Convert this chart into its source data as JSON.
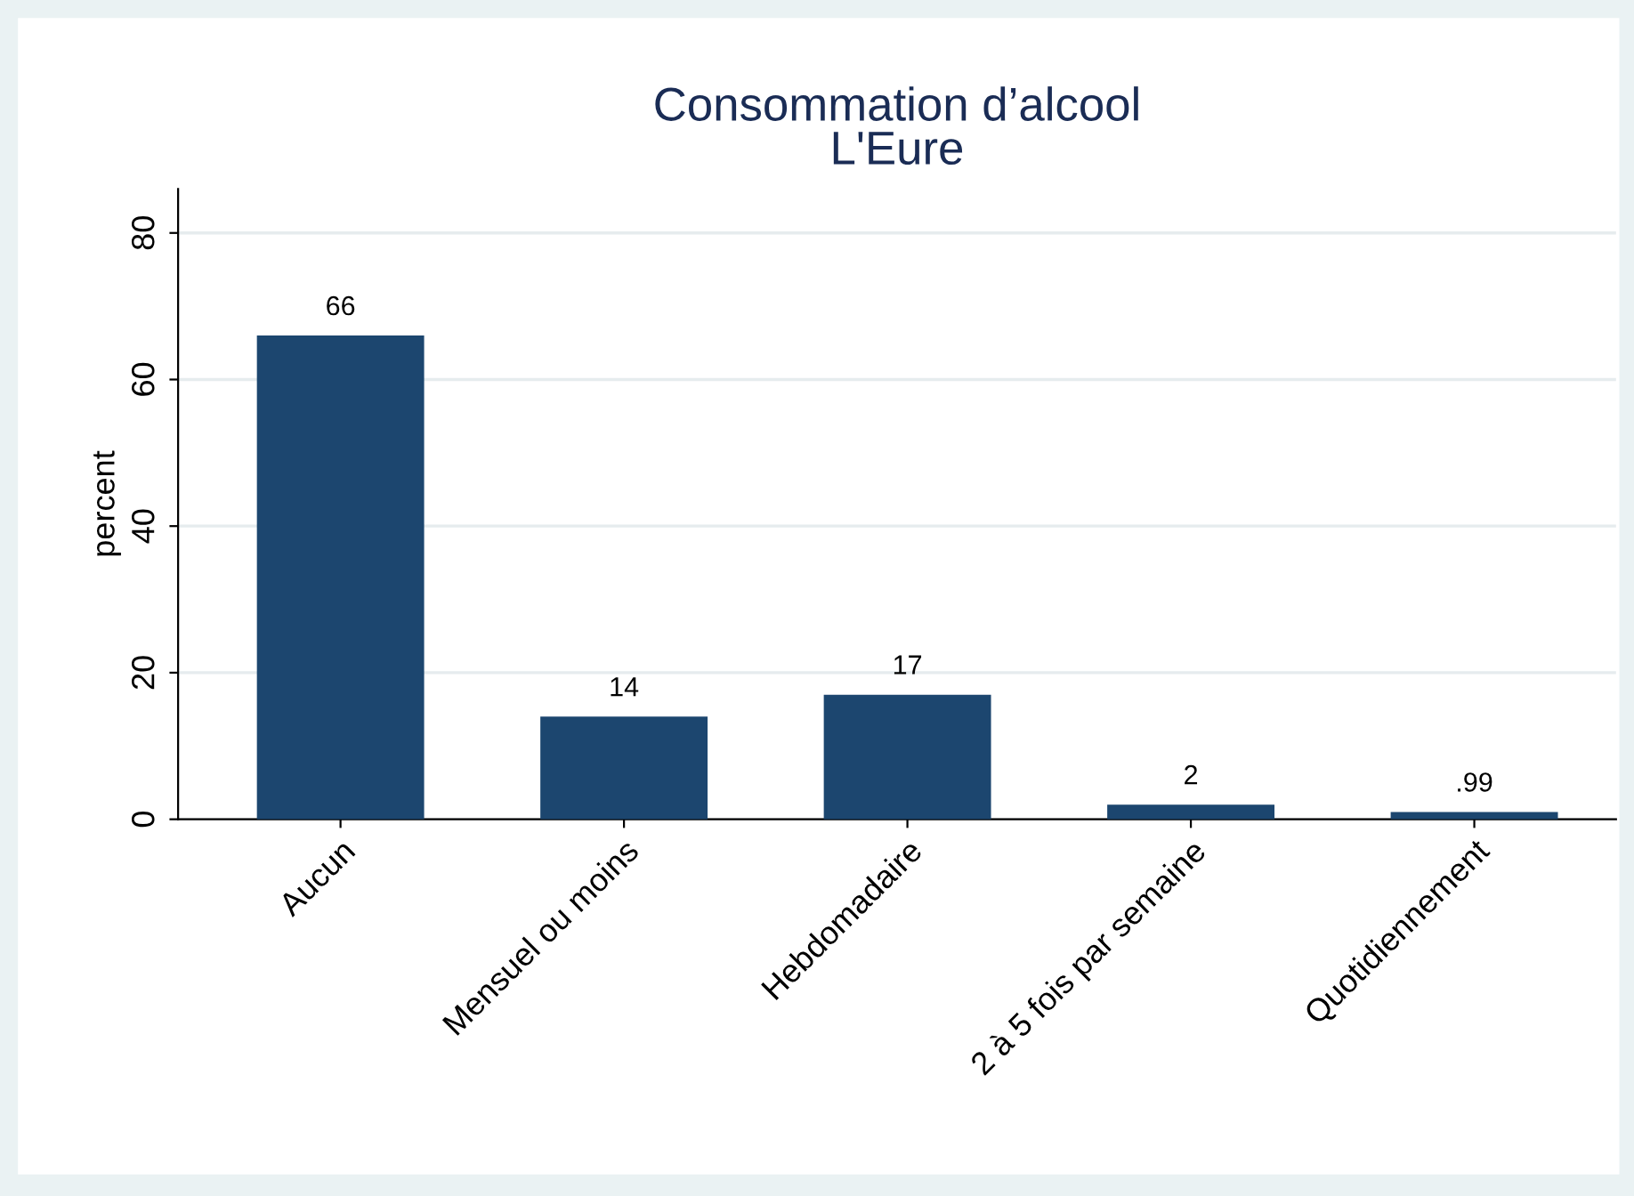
{
  "chart_data": {
    "type": "bar",
    "title": "Consommation d’alcool\nL'Eure",
    "ylabel": "percent",
    "categories": [
      "Aucun",
      "Mensuel ou moins",
      "Hebdomadaire",
      "2 à 5 fois par semaine",
      "Quotidiennement"
    ],
    "values": [
      66,
      14,
      17,
      2,
      0.99
    ],
    "value_labels": [
      "66",
      "14",
      "17",
      "2",
      ".99"
    ],
    "color": "#1c466f",
    "ylim": [
      0,
      86
    ],
    "yticks": [
      0,
      20,
      40,
      60,
      80
    ],
    "grid": "y"
  }
}
